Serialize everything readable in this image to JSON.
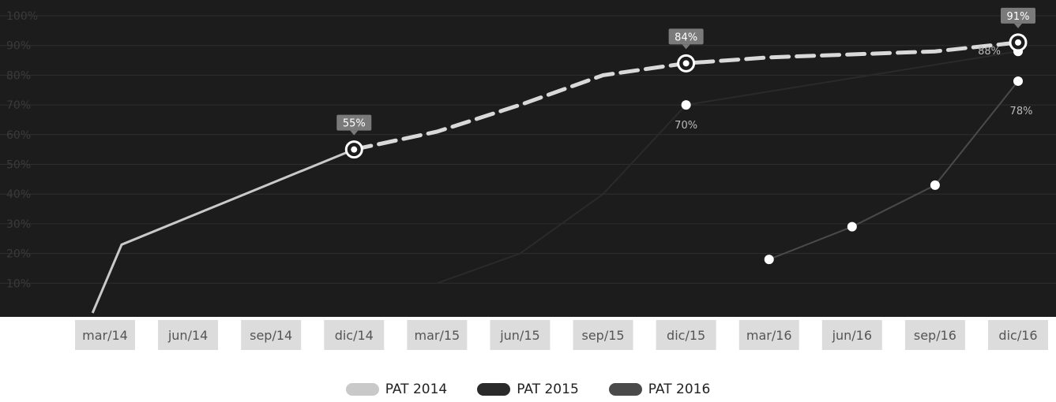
{
  "colors": {
    "plot_bg": "#1c1c1c",
    "grid": "#2e2e2e",
    "axis_label": "#3a3a3a",
    "tick_bg": "#dcdcdc",
    "tick_text": "#555555",
    "pat2014": "#c9c9c9",
    "pat2015": "#2a2a2a",
    "pat2016": "#4a4a4a",
    "marker_fill": "#ffffff",
    "data_label_bg": "#7a7a7a",
    "data_label_text": "#ffffff",
    "dashed_line": "#d9d9d9"
  },
  "chart_data": {
    "type": "line",
    "categories": [
      "mar/14",
      "jun/14",
      "sep/14",
      "dic/14",
      "mar/15",
      "jun/15",
      "sep/15",
      "dic/15",
      "mar/16",
      "jun/16",
      "sep/16",
      "dic/16"
    ],
    "ylim": [
      0,
      100
    ],
    "yticks": [
      "10%",
      "20%",
      "30%",
      "40%",
      "50%",
      "60%",
      "70%",
      "80%",
      "90%",
      "100%"
    ],
    "grid": true,
    "legend_placement": "bottom-center",
    "series": [
      {
        "name": "PAT 2014",
        "color_key": "pat2014",
        "points": [
          {
            "x": -0.15,
            "y": 0
          },
          {
            "x": 0.2,
            "y": 23
          },
          {
            "x": 3,
            "y": 55,
            "label": "55%",
            "highlight": true
          }
        ],
        "dashed_continuation": [
          {
            "x": 3,
            "y": 55
          },
          {
            "x": 4,
            "y": 61
          },
          {
            "x": 5,
            "y": 70
          },
          {
            "x": 6,
            "y": 80
          },
          {
            "x": 7,
            "y": 84,
            "label": "84%",
            "highlight": true
          },
          {
            "x": 8,
            "y": 86
          },
          {
            "x": 9,
            "y": 87
          },
          {
            "x": 10,
            "y": 88
          },
          {
            "x": 11,
            "y": 91,
            "label": "91%",
            "highlight": true
          }
        ]
      },
      {
        "name": "PAT 2015",
        "color_key": "pat2015",
        "points": [
          {
            "x": 4,
            "y": 10
          },
          {
            "x": 5,
            "y": 20
          },
          {
            "x": 6,
            "y": 40
          },
          {
            "x": 7,
            "y": 70,
            "label": "70%",
            "marker": true
          },
          {
            "x": 11,
            "y": 88,
            "label": "88%",
            "marker": true
          }
        ]
      },
      {
        "name": "PAT 2016",
        "color_key": "pat2016",
        "points": [
          {
            "x": 8,
            "y": 18,
            "marker": true
          },
          {
            "x": 9,
            "y": 29,
            "marker": true
          },
          {
            "x": 10,
            "y": 43,
            "marker": true
          },
          {
            "x": 11,
            "y": 78,
            "label": "78%",
            "marker": true
          }
        ]
      }
    ]
  },
  "legend": [
    {
      "label": "PAT 2014",
      "color_key": "pat2014"
    },
    {
      "label": "PAT 2015",
      "color_key": "pat2015"
    },
    {
      "label": "PAT 2016",
      "color_key": "pat2016"
    }
  ]
}
